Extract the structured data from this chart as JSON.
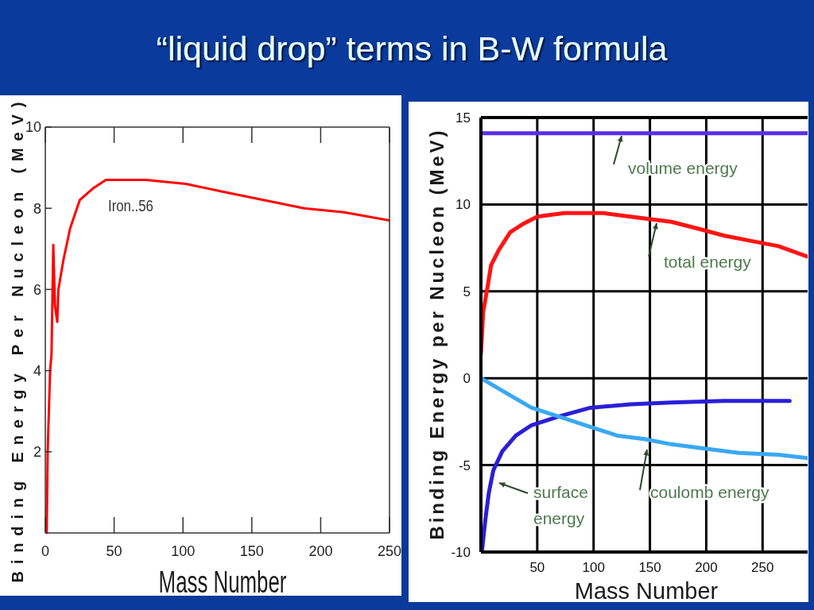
{
  "chart_data": [
    {
      "type": "line",
      "title": "“liquid drop” terms in B-W formula",
      "xlabel": "Mass Number",
      "ylabel": "Binding Energy Per Nucleon (MeV)",
      "xlim": [
        0,
        250
      ],
      "ylim": [
        0,
        10
      ],
      "xticks": [
        0,
        50,
        100,
        150,
        200,
        250
      ],
      "yticks": [
        2,
        4,
        6,
        8,
        10
      ],
      "series": [
        {
          "color": "#ff0000",
          "x": [
            1,
            1.7,
            3.5,
            4.5,
            5.8,
            7,
            8.7,
            9.5,
            13,
            18,
            25,
            35,
            44,
            56,
            73,
            102,
            130,
            159,
            188,
            217,
            250
          ],
          "values": [
            0,
            2,
            4,
            4.4,
            7.1,
            5.6,
            5.2,
            6.0,
            6.7,
            7.5,
            8.2,
            8.5,
            8.7,
            8.7,
            8.7,
            8.6,
            8.4,
            8.2,
            8.0,
            7.9,
            7.7
          ]
        }
      ],
      "annotations": [
        {
          "text": "Iron..56",
          "x": 56,
          "y": 8.7
        }
      ]
    },
    {
      "type": "line",
      "xlabel": "Mass Number",
      "ylabel": "Binding Energy per Nucleon (MeV)",
      "xlim": [
        0,
        290
      ],
      "ylim": [
        -10,
        15
      ],
      "xticks": [
        50,
        100,
        150,
        200,
        250
      ],
      "yticks": [
        -10,
        -5,
        0,
        5,
        10,
        15
      ],
      "grid": true,
      "series": [
        {
          "name": "volume energy",
          "color": "#5b2fe6",
          "x": [
            0,
            290
          ],
          "values": [
            14.1,
            14.1
          ]
        },
        {
          "name": "total energy",
          "color": "#ff1414",
          "x": [
            0,
            2,
            6,
            9,
            16,
            26,
            38,
            50,
            74,
            109,
            145,
            169,
            193,
            216,
            240,
            264,
            290
          ],
          "values": [
            1.4,
            3.8,
            5.3,
            6.5,
            7.4,
            8.4,
            8.9,
            9.3,
            9.5,
            9.5,
            9.2,
            9.0,
            8.6,
            8.2,
            7.9,
            7.6,
            7.0
          ]
        },
        {
          "name": "surface energy",
          "color": "#2a1fd6",
          "x": [
            1,
            4,
            7,
            11,
            19,
            31,
            45,
            69,
            97,
            133,
            169,
            216,
            274
          ],
          "values": [
            -9.9,
            -8.1,
            -6.6,
            -5.3,
            -4.2,
            -3.3,
            -2.7,
            -2.2,
            -1.7,
            -1.5,
            -1.4,
            -1.3,
            -1.3
          ]
        },
        {
          "name": "coulomb energy",
          "color": "#3aa8f2",
          "x": [
            0,
            21,
            45,
            69,
            97,
            121,
            145,
            169,
            193,
            229,
            264,
            290
          ],
          "values": [
            0,
            -0.8,
            -1.7,
            -2.2,
            -2.8,
            -3.3,
            -3.5,
            -3.8,
            -4.0,
            -4.3,
            -4.4,
            -4.6
          ]
        }
      ]
    }
  ]
}
